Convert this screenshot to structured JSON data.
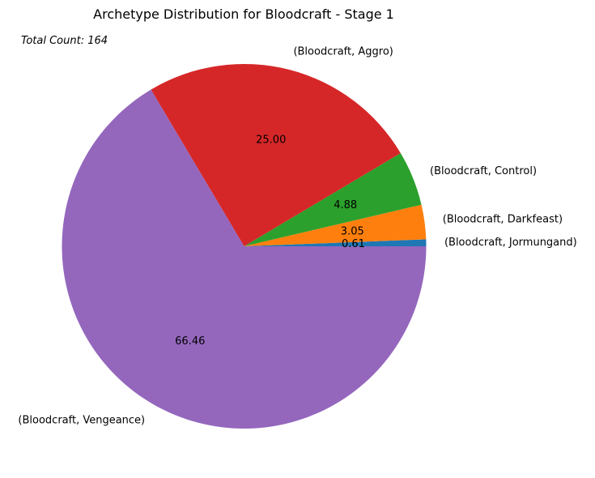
{
  "chart_data": {
    "type": "pie",
    "title": "Archetype Distribution for Bloodcraft - Stage 1",
    "annotation": "Total Count: 164",
    "start_angle_deg": 0,
    "direction": "counterclockwise",
    "slices": [
      {
        "label": "(Bloodcraft, Jormungand)",
        "value": 0.61,
        "display": "0.61",
        "color": "#1f77b4"
      },
      {
        "label": "(Bloodcraft, Darkfeast)",
        "value": 3.05,
        "display": "3.05",
        "color": "#ff7f0e"
      },
      {
        "label": "(Bloodcraft, Control)",
        "value": 4.88,
        "display": "4.88",
        "color": "#2ca02c"
      },
      {
        "label": "(Bloodcraft, Aggro)",
        "value": 25.0,
        "display": "25.00",
        "color": "#d62728"
      },
      {
        "label": "(Bloodcraft, Vengeance)",
        "value": 66.46,
        "display": "66.46",
        "color": "#9467bd"
      }
    ]
  }
}
